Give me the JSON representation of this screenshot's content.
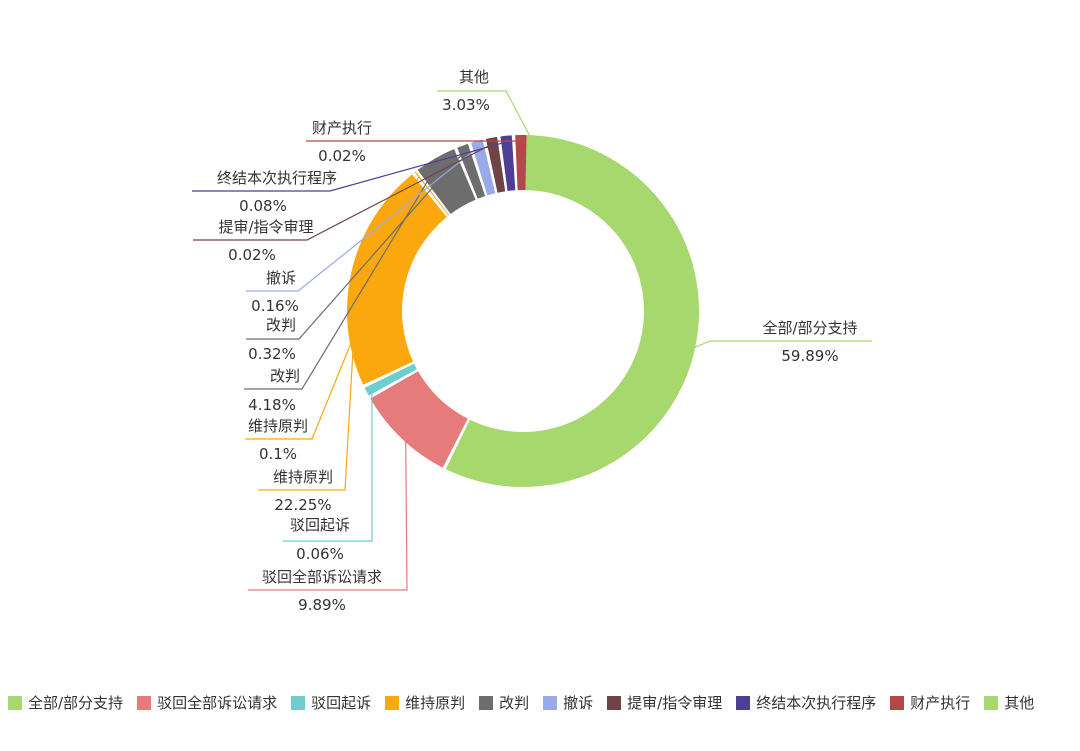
{
  "chart_data": {
    "type": "pie",
    "title": "",
    "series": [
      {
        "name": "全部/部分支持",
        "value": 59.89,
        "label": "全部/部分支持",
        "pct_label": "59.89%",
        "color": "#a6d86e"
      },
      {
        "name": "驳回全部诉讼请求",
        "value": 9.89,
        "label": "驳回全部诉讼请求",
        "pct_label": "9.89%",
        "color": "#e57b7b"
      },
      {
        "name": "驳回起诉",
        "value": 0.06,
        "label": "驳回起诉",
        "pct_label": "0.06%",
        "color": "#6ecdcd"
      },
      {
        "name": "维持原判",
        "value": 22.25,
        "label": "维持原判",
        "pct_label": "22.25%",
        "color": "#fba80e"
      },
      {
        "name": "维持原判",
        "value": 0.1,
        "label": "维持原判",
        "pct_label": "0.1%",
        "color": "#fba80e"
      },
      {
        "name": "改判",
        "value": 4.18,
        "label": "改判",
        "pct_label": "4.18%",
        "color": "#6d6d6d"
      },
      {
        "name": "改判",
        "value": 0.32,
        "label": "改判",
        "pct_label": "0.32%",
        "color": "#6d6d6d"
      },
      {
        "name": "撤诉",
        "value": 0.16,
        "label": "撤诉",
        "pct_label": "0.16%",
        "color": "#99a9ea"
      },
      {
        "name": "提审/指令审理",
        "value": 0.02,
        "label": "提审/指令审理",
        "pct_label": "0.02%",
        "color": "#6e4444"
      },
      {
        "name": "终结本次执行程序",
        "value": 0.08,
        "label": "终结本次执行程序",
        "pct_label": "0.08%",
        "color": "#4f3f94"
      },
      {
        "name": "财产执行",
        "value": 0.02,
        "label": "财产执行",
        "pct_label": "0.02%",
        "color": "#b44848"
      },
      {
        "name": "其他",
        "value": 3.03,
        "label": "其他",
        "pct_label": "3.03%",
        "color": "#a6d86e"
      }
    ],
    "legend": {
      "position": "bottom",
      "entries": [
        {
          "label": "全部/部分支持",
          "color": "#a6d86e"
        },
        {
          "label": "驳回全部诉讼请求",
          "color": "#e57b7b"
        },
        {
          "label": "驳回起诉",
          "color": "#6ecdcd"
        },
        {
          "label": "维持原判",
          "color": "#fba80e"
        },
        {
          "label": "改判",
          "color": "#6d6d6d"
        },
        {
          "label": "撤诉",
          "color": "#99a9ea"
        },
        {
          "label": "提审/指令审理",
          "color": "#6e4444"
        },
        {
          "label": "终结本次执行程序",
          "color": "#4f3f94"
        },
        {
          "label": "财产执行",
          "color": "#b44848"
        },
        {
          "label": "其他",
          "color": "#a6d86e"
        }
      ]
    }
  }
}
